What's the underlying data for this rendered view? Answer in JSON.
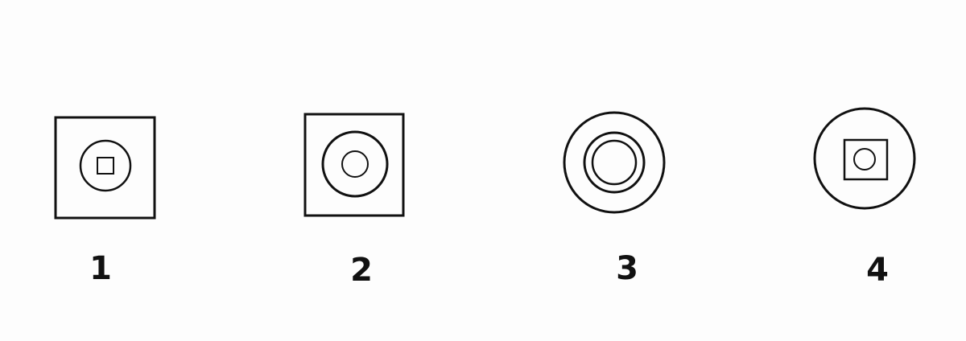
{
  "figures": [
    {
      "label": "1",
      "outer": "square",
      "middle": "circle",
      "inner": "square"
    },
    {
      "label": "2",
      "outer": "square",
      "middle": "circle",
      "inner": "circle"
    },
    {
      "label": "3",
      "outer": "circle",
      "middle": "circle",
      "inner": "circle"
    },
    {
      "label": "4",
      "outer": "circle",
      "middle": "square",
      "inner": "circle"
    }
  ],
  "colors": {
    "stroke": "#111111",
    "background": "#fdfdfd"
  }
}
